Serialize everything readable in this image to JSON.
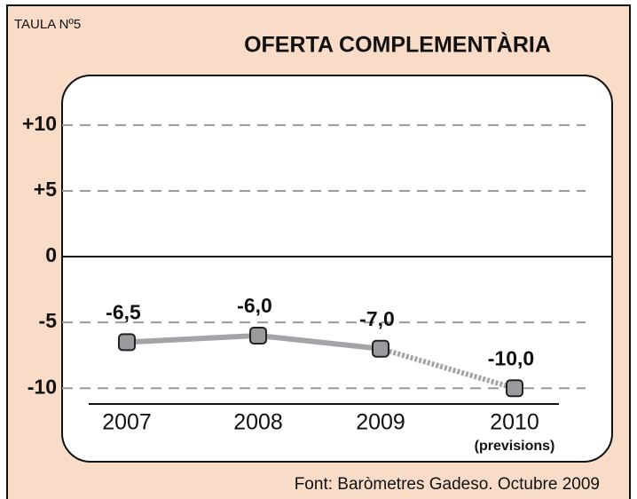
{
  "chart_data": {
    "type": "line",
    "table_label": "TAULA Nº5",
    "title": "OFERTA COMPLEMENTÀRIA",
    "source": "Font: Baròmetres Gadeso. Octubre 2009",
    "categories": [
      "2007",
      "2008",
      "2009",
      "2010"
    ],
    "category_sublabels": [
      null,
      null,
      null,
      "(previsions)"
    ],
    "values": [
      -6.5,
      -6.0,
      -7.0,
      -10.0
    ],
    "value_labels": [
      "-6,5",
      "-6,0",
      "-7,0",
      "-10,0"
    ],
    "forecast": [
      false,
      false,
      false,
      true
    ],
    "color": "#a3a3a8",
    "marker_color": "#9a9a9e",
    "ylim": [
      -11.2,
      13.5
    ],
    "yticks": [
      {
        "value": 10,
        "label": "+10"
      },
      {
        "value": 5,
        "label": "+5"
      },
      0,
      -5,
      -10
    ],
    "grid": true
  }
}
